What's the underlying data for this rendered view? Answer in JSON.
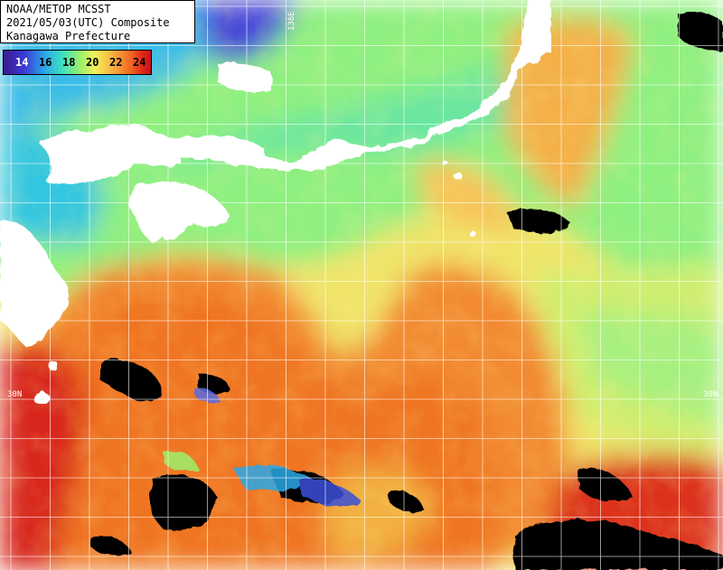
{
  "header": {
    "line1": "NOAA/METOP MCSST",
    "line2": "2021/05/03(UTC) Composite",
    "line3": "Kanagawa Prefecture"
  },
  "legend": {
    "ticks": [
      "14",
      "16",
      "18",
      "20",
      "22",
      "24"
    ]
  },
  "grid_labels": {
    "lon_136": "136E",
    "lat_30_left": "30N",
    "lat_30_right": "30N"
  },
  "colors": {
    "land": "#ffffff",
    "cloud": "#000000",
    "cold_purple": "#3a1a8a",
    "blue": "#3b6ef0",
    "cyan": "#2ac8e8",
    "green": "#8ef080",
    "yellow": "#e8f060",
    "orange": "#f28a30",
    "red": "#e8401e",
    "deep_red": "#cf1c1c",
    "grid": "#ffffff"
  }
}
